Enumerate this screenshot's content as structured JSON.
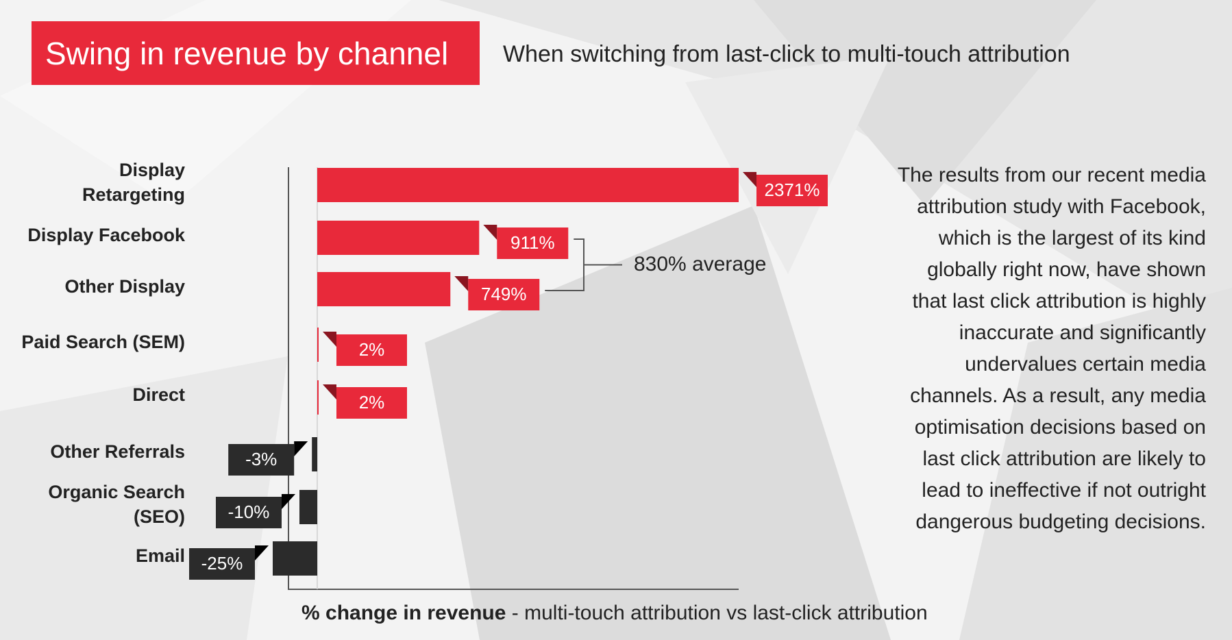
{
  "header": {
    "title": "Swing in revenue by channel",
    "subtitle": "When switching from last-click to multi-touch attribution"
  },
  "annotation": {
    "average_label": "830% average"
  },
  "body_text": "The results from our recent media attribution study with Facebook, which is the largest of its kind globally right now, have shown that last click attribution is highly inaccurate and significantly undervalues certain media channels. As a result, any media optimisation decisions based on last click attribution are likely to lead to ineffective if not outright dangerous budgeting decisions.",
  "xlabel": {
    "bold": "% change in revenue",
    "rest": " - multi-touch attribution vs last-click attribution"
  },
  "colors": {
    "positive": "#e8293a",
    "negative": "#2b2b2b",
    "positive_dark": "#8a1520",
    "title_bg": "#e8293a"
  },
  "chart_data": {
    "type": "bar",
    "orientation": "horizontal",
    "title": "Swing in revenue by channel",
    "subtitle": "When switching from last-click to multi-touch attribution",
    "xlabel": "% change in revenue - multi-touch attribution vs last-click attribution",
    "ylabel": "",
    "categories": [
      [
        "Display",
        "Retargeting"
      ],
      [
        "Display Facebook"
      ],
      [
        "Other Display"
      ],
      [
        "Paid Search (SEM)"
      ],
      [
        "Direct"
      ],
      [
        "Other Referrals"
      ],
      [
        "Organic Search",
        "(SEO)"
      ],
      [
        "Email"
      ]
    ],
    "values": [
      2371,
      911,
      749,
      2,
      2,
      -3,
      -10,
      -25
    ],
    "value_labels": [
      "2371%",
      "911%",
      "749%",
      "2%",
      "2%",
      "-3%",
      "-10%",
      "-25%"
    ],
    "grid": false,
    "legend": "none"
  }
}
